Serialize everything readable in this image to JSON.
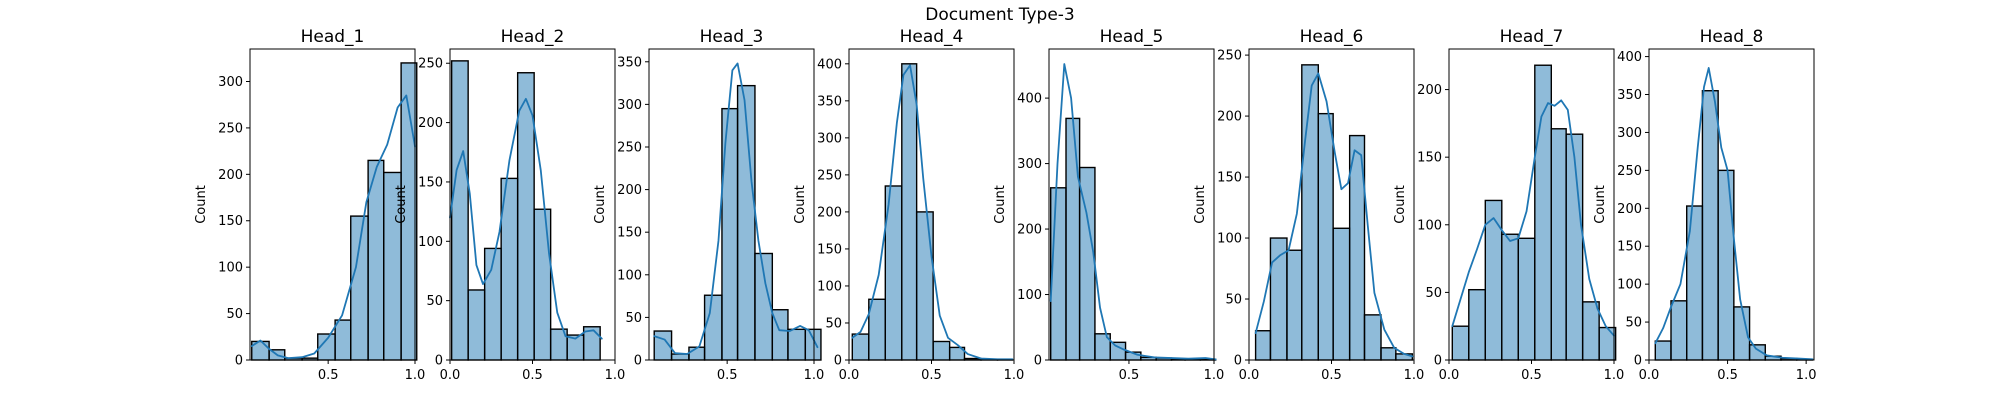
{
  "figure": {
    "suptitle": "Document Type-3"
  },
  "style": {
    "bar_fill": "#1f77b4",
    "bar_opacity": 0.5,
    "bar_edge": "#000000",
    "kde_color": "#1f77b4"
  },
  "chart_data": [
    {
      "type": "bar",
      "title": "Head_1",
      "ylabel": "Count",
      "xlim": [
        0.05,
        1.0
      ],
      "xticks": [
        0.5,
        1.0
      ],
      "xtick_labels": [
        "0.5",
        "1.0"
      ],
      "yticks": [
        0,
        50,
        100,
        150,
        200,
        250,
        300
      ],
      "ylim": [
        0,
        335
      ],
      "bins": [
        [
          0.06,
          0.16
        ],
        [
          0.16,
          0.25
        ],
        [
          0.25,
          0.35
        ],
        [
          0.35,
          0.44
        ],
        [
          0.44,
          0.54
        ],
        [
          0.54,
          0.63
        ],
        [
          0.63,
          0.73
        ],
        [
          0.73,
          0.82
        ],
        [
          0.82,
          0.92
        ],
        [
          0.92,
          1.01
        ]
      ],
      "counts": [
        20,
        11,
        2,
        2,
        28,
        43,
        155,
        215,
        202,
        320
      ],
      "kde": [
        [
          0.06,
          15
        ],
        [
          0.11,
          21
        ],
        [
          0.16,
          12
        ],
        [
          0.21,
          5
        ],
        [
          0.27,
          2
        ],
        [
          0.35,
          3
        ],
        [
          0.42,
          7
        ],
        [
          0.5,
          24
        ],
        [
          0.58,
          48
        ],
        [
          0.66,
          100
        ],
        [
          0.72,
          170
        ],
        [
          0.78,
          208
        ],
        [
          0.84,
          232
        ],
        [
          0.9,
          272
        ],
        [
          0.95,
          285
        ],
        [
          1.0,
          230
        ]
      ]
    },
    {
      "type": "bar",
      "title": "Head_2",
      "ylabel": "Count",
      "xlim": [
        0.0,
        1.0
      ],
      "xticks": [
        0.0,
        0.5,
        1.0
      ],
      "xtick_labels": [
        "0.0",
        "0.5",
        "1.0"
      ],
      "yticks": [
        0,
        50,
        100,
        150,
        200,
        250
      ],
      "ylim": [
        0,
        262
      ],
      "bins": [
        [
          0.01,
          0.11
        ],
        [
          0.11,
          0.21
        ],
        [
          0.21,
          0.31
        ],
        [
          0.31,
          0.41
        ],
        [
          0.41,
          0.51
        ],
        [
          0.51,
          0.61
        ],
        [
          0.61,
          0.71
        ],
        [
          0.71,
          0.81
        ],
        [
          0.81,
          0.91
        ]
      ],
      "counts": [
        252,
        59,
        94,
        153,
        242,
        127,
        26,
        21,
        28
      ],
      "kde": [
        [
          0.0,
          120
        ],
        [
          0.04,
          160
        ],
        [
          0.08,
          176
        ],
        [
          0.12,
          140
        ],
        [
          0.16,
          80
        ],
        [
          0.2,
          64
        ],
        [
          0.25,
          76
        ],
        [
          0.3,
          108
        ],
        [
          0.36,
          168
        ],
        [
          0.42,
          210
        ],
        [
          0.46,
          220
        ],
        [
          0.5,
          206
        ],
        [
          0.55,
          160
        ],
        [
          0.6,
          90
        ],
        [
          0.65,
          40
        ],
        [
          0.7,
          20
        ],
        [
          0.76,
          18
        ],
        [
          0.82,
          24
        ],
        [
          0.87,
          25
        ],
        [
          0.92,
          18
        ]
      ]
    },
    {
      "type": "bar",
      "title": "Head_3",
      "ylabel": "Count",
      "xlim": [
        0.05,
        1.0
      ],
      "xticks": [
        0.5,
        1.0
      ],
      "xtick_labels": [
        "0.5",
        "1.0"
      ],
      "yticks": [
        0,
        50,
        100,
        150,
        200,
        250,
        300,
        350
      ],
      "ylim": [
        0,
        365
      ],
      "bins": [
        [
          0.08,
          0.18
        ],
        [
          0.18,
          0.28
        ],
        [
          0.28,
          0.37
        ],
        [
          0.37,
          0.47
        ],
        [
          0.47,
          0.56
        ],
        [
          0.56,
          0.66
        ],
        [
          0.66,
          0.76
        ],
        [
          0.76,
          0.85
        ],
        [
          0.85,
          0.95
        ],
        [
          0.95,
          1.04
        ]
      ],
      "counts": [
        34,
        7,
        15,
        76,
        295,
        322,
        125,
        59,
        36,
        36
      ],
      "kde": [
        [
          0.08,
          28
        ],
        [
          0.14,
          24
        ],
        [
          0.2,
          8
        ],
        [
          0.27,
          7
        ],
        [
          0.34,
          16
        ],
        [
          0.4,
          55
        ],
        [
          0.45,
          140
        ],
        [
          0.49,
          255
        ],
        [
          0.53,
          340
        ],
        [
          0.56,
          348
        ],
        [
          0.6,
          305
        ],
        [
          0.64,
          210
        ],
        [
          0.68,
          140
        ],
        [
          0.72,
          90
        ],
        [
          0.76,
          55
        ],
        [
          0.8,
          35
        ],
        [
          0.86,
          34
        ],
        [
          0.92,
          40
        ],
        [
          0.97,
          35
        ],
        [
          1.02,
          15
        ]
      ]
    },
    {
      "type": "bar",
      "title": "Head_4",
      "ylabel": "Count",
      "xlim": [
        0.0,
        1.0
      ],
      "xticks": [
        0.0,
        0.5,
        1.0
      ],
      "xtick_labels": [
        "0.0",
        "0.5",
        "1.0"
      ],
      "yticks": [
        0,
        50,
        100,
        150,
        200,
        250,
        300,
        350,
        400
      ],
      "ylim": [
        0,
        420
      ],
      "bins": [
        [
          0.02,
          0.12
        ],
        [
          0.12,
          0.22
        ],
        [
          0.22,
          0.32
        ],
        [
          0.32,
          0.41
        ],
        [
          0.41,
          0.51
        ],
        [
          0.51,
          0.61
        ],
        [
          0.61,
          0.7
        ],
        [
          0.7,
          0.8
        ],
        [
          0.8,
          0.9
        ],
        [
          0.9,
          0.99
        ]
      ],
      "counts": [
        35,
        82,
        235,
        400,
        200,
        25,
        17,
        2,
        1,
        1
      ],
      "kde": [
        [
          0.02,
          30
        ],
        [
          0.07,
          38
        ],
        [
          0.12,
          62
        ],
        [
          0.18,
          115
        ],
        [
          0.24,
          210
        ],
        [
          0.29,
          320
        ],
        [
          0.33,
          385
        ],
        [
          0.37,
          398
        ],
        [
          0.41,
          345
        ],
        [
          0.45,
          245
        ],
        [
          0.5,
          140
        ],
        [
          0.55,
          60
        ],
        [
          0.6,
          30
        ],
        [
          0.66,
          20
        ],
        [
          0.72,
          8
        ],
        [
          0.8,
          2
        ],
        [
          0.9,
          1
        ],
        [
          0.99,
          1
        ]
      ]
    },
    {
      "type": "bar",
      "title": "Head_5",
      "ylabel": "Count",
      "xlim": [
        0.03,
        1.0
      ],
      "xticks": [
        0.5,
        1.0
      ],
      "xtick_labels": [
        "0.5",
        "1.0"
      ],
      "yticks": [
        0,
        100,
        200,
        300,
        400
      ],
      "ylim": [
        0,
        475
      ],
      "bins": [
        [
          0.04,
          0.13
        ],
        [
          0.13,
          0.21
        ],
        [
          0.21,
          0.3
        ],
        [
          0.3,
          0.39
        ],
        [
          0.39,
          0.48
        ],
        [
          0.48,
          0.57
        ],
        [
          0.57,
          0.66
        ],
        [
          0.66,
          0.75
        ],
        [
          0.75,
          0.83
        ],
        [
          0.83,
          0.92
        ],
        [
          0.92,
          1.01
        ]
      ],
      "counts": [
        263,
        369,
        294,
        40,
        27,
        12,
        4,
        3,
        2,
        1,
        1
      ],
      "kde": [
        [
          0.04,
          90
        ],
        [
          0.08,
          300
        ],
        [
          0.12,
          452
        ],
        [
          0.16,
          400
        ],
        [
          0.2,
          280
        ],
        [
          0.25,
          225
        ],
        [
          0.29,
          165
        ],
        [
          0.33,
          80
        ],
        [
          0.37,
          35
        ],
        [
          0.42,
          22
        ],
        [
          0.47,
          16
        ],
        [
          0.55,
          8
        ],
        [
          0.65,
          4
        ],
        [
          0.75,
          3
        ],
        [
          0.85,
          2
        ],
        [
          0.95,
          3
        ],
        [
          1.01,
          1
        ]
      ]
    },
    {
      "type": "bar",
      "title": "Head_6",
      "ylabel": "Count",
      "xlim": [
        0.0,
        1.0
      ],
      "xticks": [
        0.0,
        0.5,
        1.0
      ],
      "xtick_labels": [
        "0.0",
        "0.5",
        "1.0"
      ],
      "yticks": [
        0,
        50,
        100,
        150,
        200,
        250
      ],
      "ylim": [
        0,
        255
      ],
      "bins": [
        [
          0.04,
          0.13
        ],
        [
          0.13,
          0.23
        ],
        [
          0.23,
          0.32
        ],
        [
          0.32,
          0.42
        ],
        [
          0.42,
          0.51
        ],
        [
          0.51,
          0.61
        ],
        [
          0.61,
          0.7
        ],
        [
          0.7,
          0.8
        ],
        [
          0.8,
          0.89
        ],
        [
          0.89,
          0.99
        ]
      ],
      "counts": [
        24,
        100,
        90,
        242,
        202,
        108,
        184,
        37,
        10,
        5
      ],
      "kde": [
        [
          0.04,
          22
        ],
        [
          0.09,
          48
        ],
        [
          0.14,
          80
        ],
        [
          0.19,
          86
        ],
        [
          0.24,
          90
        ],
        [
          0.29,
          120
        ],
        [
          0.34,
          180
        ],
        [
          0.38,
          225
        ],
        [
          0.42,
          235
        ],
        [
          0.47,
          212
        ],
        [
          0.52,
          170
        ],
        [
          0.56,
          140
        ],
        [
          0.6,
          145
        ],
        [
          0.64,
          172
        ],
        [
          0.68,
          168
        ],
        [
          0.72,
          110
        ],
        [
          0.76,
          55
        ],
        [
          0.82,
          25
        ],
        [
          0.88,
          10
        ],
        [
          0.94,
          5
        ],
        [
          0.99,
          3
        ]
      ]
    },
    {
      "type": "bar",
      "title": "Head_7",
      "ylabel": "Count",
      "xlim": [
        0.0,
        1.0
      ],
      "xticks": [
        0.0,
        0.5,
        1.0
      ],
      "xtick_labels": [
        "0.0",
        "0.5",
        "1.0"
      ],
      "yticks": [
        0,
        50,
        100,
        150,
        200
      ],
      "ylim": [
        0,
        230
      ],
      "bins": [
        [
          0.02,
          0.12
        ],
        [
          0.12,
          0.22
        ],
        [
          0.22,
          0.32
        ],
        [
          0.32,
          0.42
        ],
        [
          0.42,
          0.52
        ],
        [
          0.52,
          0.62
        ],
        [
          0.62,
          0.71
        ],
        [
          0.71,
          0.81
        ],
        [
          0.81,
          0.91
        ],
        [
          0.91,
          1.01
        ]
      ],
      "counts": [
        25,
        52,
        118,
        93,
        90,
        218,
        171,
        167,
        43,
        24
      ],
      "kde": [
        [
          0.02,
          25
        ],
        [
          0.07,
          45
        ],
        [
          0.12,
          65
        ],
        [
          0.17,
          82
        ],
        [
          0.22,
          100
        ],
        [
          0.27,
          105
        ],
        [
          0.32,
          96
        ],
        [
          0.37,
          88
        ],
        [
          0.42,
          90
        ],
        [
          0.47,
          110
        ],
        [
          0.52,
          150
        ],
        [
          0.56,
          180
        ],
        [
          0.6,
          190
        ],
        [
          0.64,
          188
        ],
        [
          0.68,
          192
        ],
        [
          0.72,
          185
        ],
        [
          0.76,
          150
        ],
        [
          0.8,
          100
        ],
        [
          0.85,
          60
        ],
        [
          0.9,
          38
        ],
        [
          0.95,
          25
        ],
        [
          1.0,
          18
        ]
      ]
    },
    {
      "type": "bar",
      "title": "Head_8",
      "ylabel": "Count",
      "xlim": [
        0.0,
        1.05
      ],
      "xticks": [
        0.0,
        0.5,
        1.0
      ],
      "xtick_labels": [
        "0.0",
        "0.5",
        "1.0"
      ],
      "yticks": [
        0,
        50,
        100,
        150,
        200,
        250,
        300,
        350,
        400
      ],
      "ylim": [
        0,
        410
      ],
      "bins": [
        [
          0.04,
          0.14
        ],
        [
          0.14,
          0.24
        ],
        [
          0.24,
          0.34
        ],
        [
          0.34,
          0.44
        ],
        [
          0.44,
          0.54
        ],
        [
          0.54,
          0.64
        ],
        [
          0.64,
          0.74
        ],
        [
          0.74,
          0.84
        ],
        [
          0.84,
          0.94
        ],
        [
          0.94,
          1.04
        ]
      ],
      "counts": [
        25,
        78,
        203,
        355,
        250,
        70,
        20,
        5,
        2,
        1
      ],
      "kde": [
        [
          0.04,
          22
        ],
        [
          0.09,
          42
        ],
        [
          0.14,
          70
        ],
        [
          0.2,
          100
        ],
        [
          0.26,
          170
        ],
        [
          0.31,
          280
        ],
        [
          0.35,
          360
        ],
        [
          0.38,
          385
        ],
        [
          0.42,
          340
        ],
        [
          0.46,
          280
        ],
        [
          0.5,
          250
        ],
        [
          0.54,
          160
        ],
        [
          0.58,
          80
        ],
        [
          0.63,
          30
        ],
        [
          0.68,
          15
        ],
        [
          0.75,
          6
        ],
        [
          0.85,
          3
        ],
        [
          0.95,
          2
        ],
        [
          1.04,
          1
        ]
      ]
    }
  ]
}
